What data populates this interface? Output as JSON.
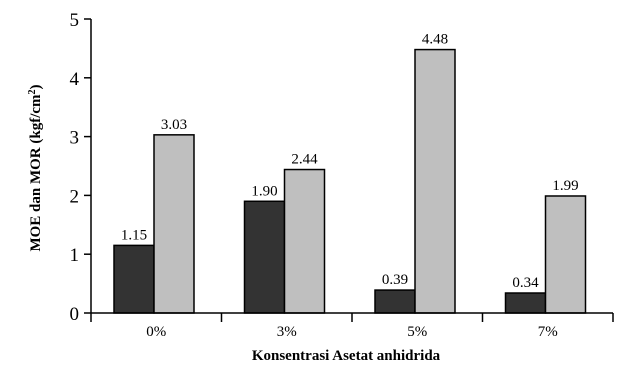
{
  "chart_data": {
    "type": "bar",
    "categories": [
      "0%",
      "3%",
      "5%",
      "7%"
    ],
    "series": [
      {
        "values": [
          1.15,
          1.9,
          0.39,
          0.34
        ],
        "color": "#333333",
        "labels": [
          "1.15",
          "1.90",
          "0.39",
          "0.34"
        ]
      },
      {
        "values": [
          3.03,
          2.44,
          4.48,
          1.99
        ],
        "color": "#bfbfbf",
        "labels": [
          "3.03",
          "2.44",
          "4.48",
          "1.99"
        ]
      }
    ],
    "title": "",
    "xlabel": "Konsentrasi Asetat anhidrida",
    "ylabel": "MOE dan MOR (kgf/cm2)",
    "ylabel_parts": {
      "main": "MOE dan MOR (kgf/cm",
      "sup": "2",
      "end": ")"
    },
    "ylim": [
      0,
      5
    ],
    "yticks": [
      "0",
      "1",
      "2",
      "3",
      "4",
      "5"
    ],
    "grid": false,
    "legend": false
  }
}
